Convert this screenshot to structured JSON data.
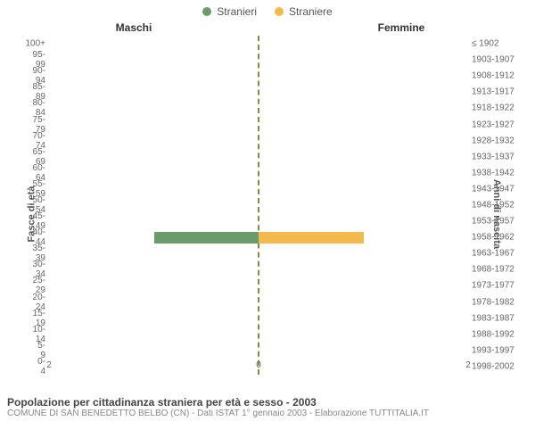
{
  "legend": {
    "male": {
      "label": "Stranieri",
      "color": "#6b9a6b"
    },
    "female": {
      "label": "Straniere",
      "color": "#f3b94c"
    }
  },
  "headers": {
    "male": "Maschi",
    "female": "Femmine"
  },
  "axis_labels": {
    "left": "Fasce di età",
    "right": "Anni di nascita"
  },
  "chart": {
    "type": "population-pyramid",
    "xmax": 2,
    "xticks": [
      2,
      0,
      2
    ],
    "background_left": "#ffffff",
    "background_right": "#ffffff",
    "midline_color": "#8a8a3a",
    "bins": [
      {
        "age": "0-4",
        "birth": "1998-2002",
        "male": 0,
        "female": 0
      },
      {
        "age": "5-9",
        "birth": "1993-1997",
        "male": 0,
        "female": 0
      },
      {
        "age": "10-14",
        "birth": "1988-1992",
        "male": 0,
        "female": 0
      },
      {
        "age": "15-19",
        "birth": "1983-1987",
        "male": 0,
        "female": 0
      },
      {
        "age": "20-24",
        "birth": "1978-1982",
        "male": 0,
        "female": 0
      },
      {
        "age": "25-29",
        "birth": "1973-1977",
        "male": 0,
        "female": 0
      },
      {
        "age": "30-34",
        "birth": "1968-1972",
        "male": 0,
        "female": 0
      },
      {
        "age": "35-39",
        "birth": "1963-1967",
        "male": 0,
        "female": 0
      },
      {
        "age": "40-44",
        "birth": "1958-1962",
        "male": 1,
        "female": 1
      },
      {
        "age": "45-49",
        "birth": "1953-1957",
        "male": 0,
        "female": 0
      },
      {
        "age": "50-54",
        "birth": "1948-1952",
        "male": 0,
        "female": 0
      },
      {
        "age": "55-59",
        "birth": "1943-1947",
        "male": 0,
        "female": 0
      },
      {
        "age": "60-64",
        "birth": "1938-1942",
        "male": 0,
        "female": 0
      },
      {
        "age": "65-69",
        "birth": "1933-1937",
        "male": 0,
        "female": 0
      },
      {
        "age": "70-74",
        "birth": "1928-1932",
        "male": 0,
        "female": 0
      },
      {
        "age": "75-79",
        "birth": "1923-1927",
        "male": 0,
        "female": 0
      },
      {
        "age": "80-84",
        "birth": "1918-1922",
        "male": 0,
        "female": 0
      },
      {
        "age": "85-89",
        "birth": "1913-1917",
        "male": 0,
        "female": 0
      },
      {
        "age": "90-94",
        "birth": "1908-1912",
        "male": 0,
        "female": 0
      },
      {
        "age": "95-99",
        "birth": "1903-1907",
        "male": 0,
        "female": 0
      },
      {
        "age": "100+",
        "birth": "≤ 1902",
        "male": 0,
        "female": 0
      }
    ]
  },
  "caption": {
    "title": "Popolazione per cittadinanza straniera per età e sesso - 2003",
    "subtitle": "COMUNE DI SAN BENEDETTO BELBO (CN) - Dati ISTAT 1° gennaio 2003 - Elaborazione TUTTITALIA.IT"
  }
}
